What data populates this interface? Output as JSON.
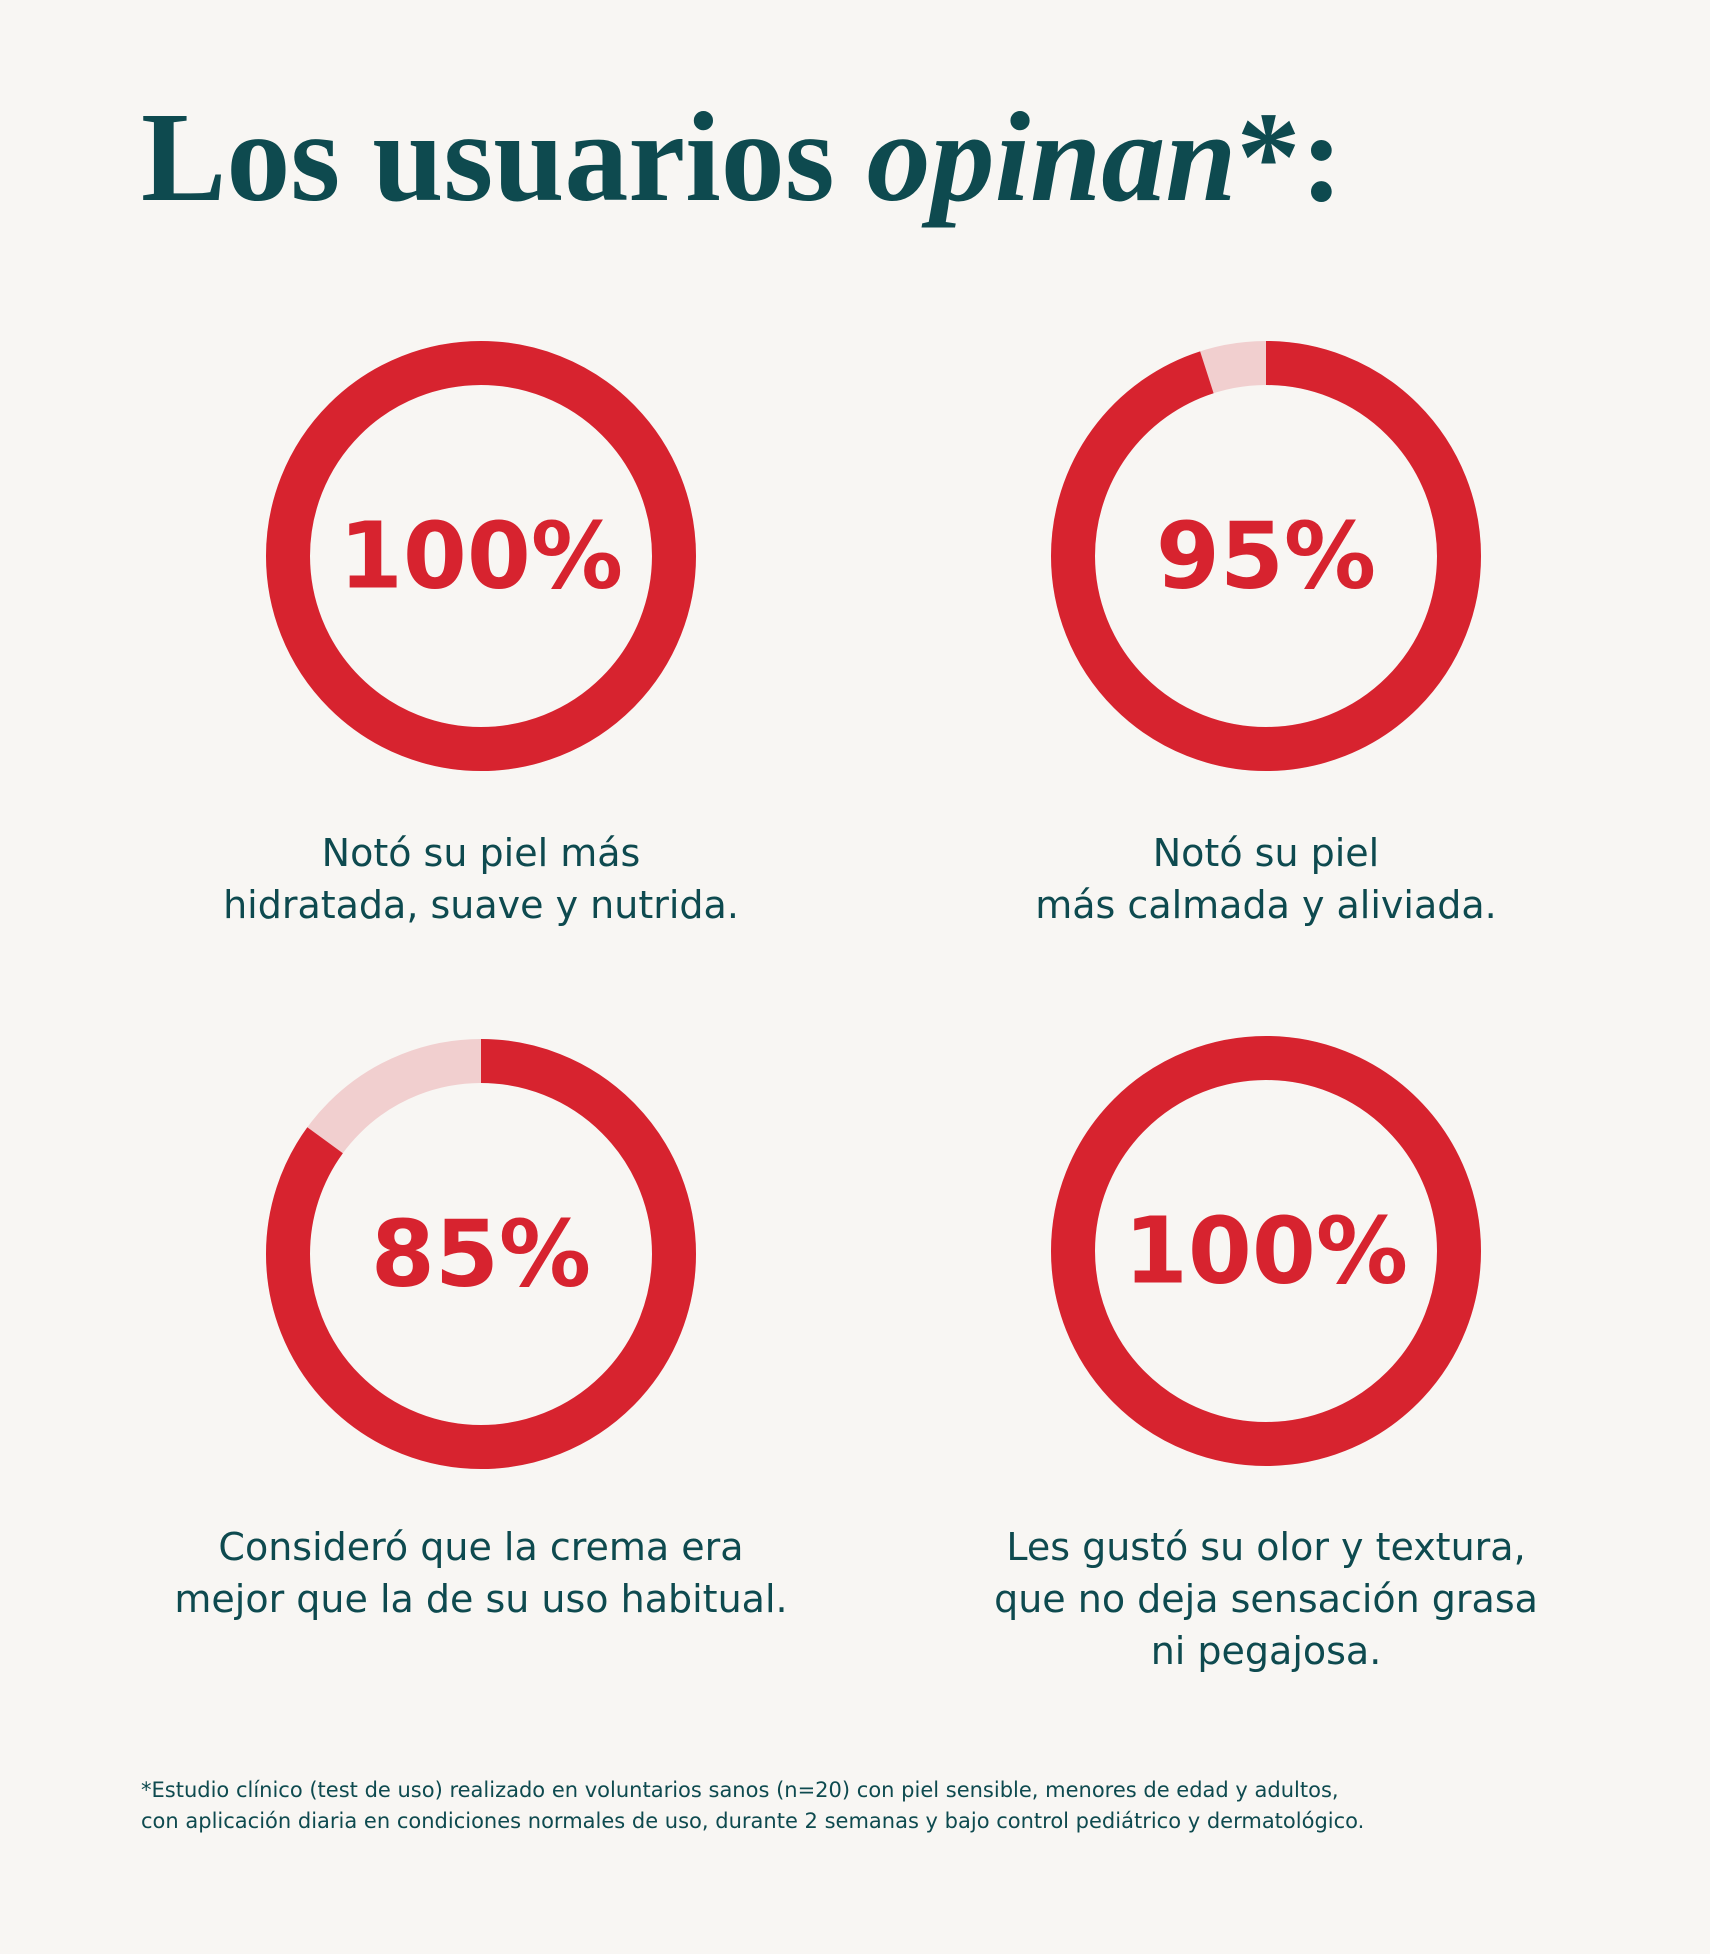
{
  "title": {
    "text": "Los usuarios",
    "emphasis": "opinan",
    "suffix": "*:"
  },
  "chart_data": [
    {
      "type": "donut",
      "values": [
        100
      ],
      "value_labels": [
        "100%"
      ],
      "color": "#d7232f",
      "track_color": "#f1cfcf",
      "caption": [
        "Notó su piel más",
        "hidratada, suave y nutrida."
      ]
    },
    {
      "type": "donut",
      "values": [
        95
      ],
      "value_labels": [
        "95%"
      ],
      "color": "#d7232f",
      "track_color": "#f1cfcf",
      "caption": [
        "Notó su piel",
        "más calmada y aliviada."
      ]
    },
    {
      "type": "donut",
      "values": [
        85
      ],
      "value_labels": [
        "85%"
      ],
      "color": "#d7232f",
      "track_color": "#f1cfcf",
      "caption": [
        "Consideró que la crema era",
        "mejor que la de su uso habitual."
      ]
    },
    {
      "type": "donut",
      "values": [
        100
      ],
      "value_labels": [
        "100%"
      ],
      "color": "#d7232f",
      "track_color": "#f1cfcf",
      "caption": [
        "Les gustó su olor y textura,",
        "que no deja sensación grasa",
        "ni pegajosa."
      ]
    }
  ],
  "footnote": [
    "*Estudio clínico (test de uso) realizado en voluntarios sanos (n=20) con piel sensible, menores de edad y adultos,",
    "con aplicación diaria en condiciones normales de uso, durante 2 semanas y bajo control pediátrico y dermatológico."
  ]
}
